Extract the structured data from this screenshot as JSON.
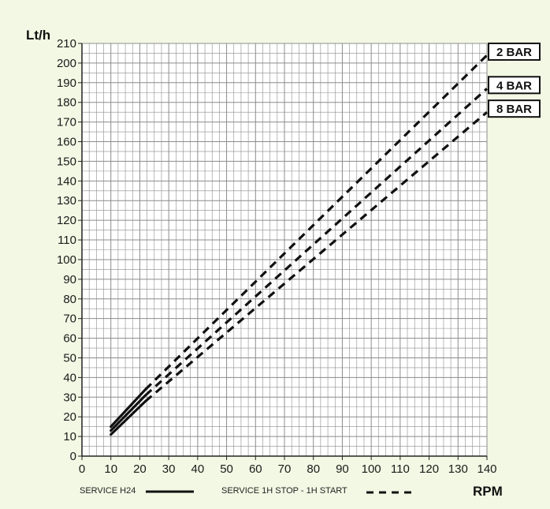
{
  "chart_data": {
    "type": "line",
    "xlabel": "RPM",
    "ylabel": "Lt/h",
    "xlim": [
      0,
      140
    ],
    "ylim": [
      0,
      210
    ],
    "x_ticks": [
      0,
      10,
      20,
      30,
      40,
      50,
      60,
      70,
      80,
      90,
      100,
      110,
      120,
      130,
      140
    ],
    "y_ticks": [
      0,
      10,
      20,
      30,
      40,
      50,
      60,
      70,
      80,
      90,
      100,
      110,
      120,
      130,
      140,
      150,
      160,
      170,
      180,
      190,
      200,
      210
    ],
    "grid": true,
    "minor_grid_step": {
      "x": 2.5,
      "y": 5
    },
    "series": [
      {
        "name": "2 BAR",
        "solid": {
          "x": [
            10,
            22
          ],
          "y": [
            15,
            34
          ]
        },
        "dashed": {
          "x": [
            22,
            140
          ],
          "y": [
            34,
            204
          ]
        }
      },
      {
        "name": "4 BAR",
        "solid": {
          "x": [
            10,
            22
          ],
          "y": [
            13,
            31
          ]
        },
        "dashed": {
          "x": [
            22,
            140
          ],
          "y": [
            31,
            187
          ]
        }
      },
      {
        "name": "8 BAR",
        "solid": {
          "x": [
            10,
            22
          ],
          "y": [
            11,
            28
          ]
        },
        "dashed": {
          "x": [
            22,
            140
          ],
          "y": [
            28,
            175
          ]
        }
      }
    ],
    "legend": [
      {
        "label": "SERVICE H24",
        "style": "solid"
      },
      {
        "label": "SERVICE 1H STOP - 1H START",
        "style": "dashed"
      }
    ],
    "legend_placement": "bottom",
    "colors": {
      "background": "#f3f8e4",
      "plot_background": "#ffffff",
      "grid": "#8c8c8c",
      "line": "#111111"
    }
  }
}
